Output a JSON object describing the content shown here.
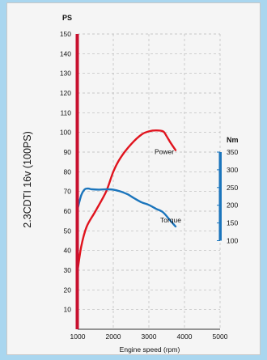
{
  "chart_data": {
    "type": "line",
    "side_title": "2.3CDTI 16v (100PS)",
    "xlabel": "Engine speed (rpm)",
    "xlim": [
      1000,
      5000
    ],
    "x_ticks": [
      "1000",
      "2000",
      "3000",
      "4000",
      "5000"
    ],
    "left_unit": "PS",
    "left_ylim": [
      0,
      150
    ],
    "left_ticks": [
      "10",
      "20",
      "30",
      "40",
      "50",
      "60",
      "70",
      "80",
      "90",
      "100",
      "110",
      "120",
      "130",
      "140",
      "150"
    ],
    "right_unit": "Nm",
    "right_ylim": [
      100,
      350
    ],
    "right_ticks": [
      "100",
      "150",
      "200",
      "250",
      "300",
      "350"
    ],
    "grid": true,
    "left_axis_color": "#c8102e",
    "right_axis_color": "#1b75bc",
    "series": [
      {
        "name": "Power",
        "axis": "left",
        "color": "#e0141e",
        "x": [
          1000,
          1100,
          1250,
          1500,
          1800,
          2000,
          2200,
          2500,
          2800,
          3000,
          3200,
          3400,
          3500,
          3600,
          3750
        ],
        "y": [
          30,
          42,
          52,
          60,
          70,
          80,
          87,
          94,
          99,
          100.5,
          101,
          100.5,
          98,
          95,
          91
        ]
      },
      {
        "name": "Torque",
        "axis": "right",
        "color": "#1b75bc",
        "x": [
          1000,
          1100,
          1200,
          1300,
          1400,
          1600,
          1800,
          2000,
          2200,
          2400,
          2600,
          2800,
          3000,
          3200,
          3400,
          3600,
          3750
        ],
        "y": [
          190,
          228,
          245,
          247,
          245,
          244,
          245,
          244,
          239,
          231,
          219,
          208,
          201,
          190,
          180,
          157,
          140
        ]
      }
    ]
  }
}
